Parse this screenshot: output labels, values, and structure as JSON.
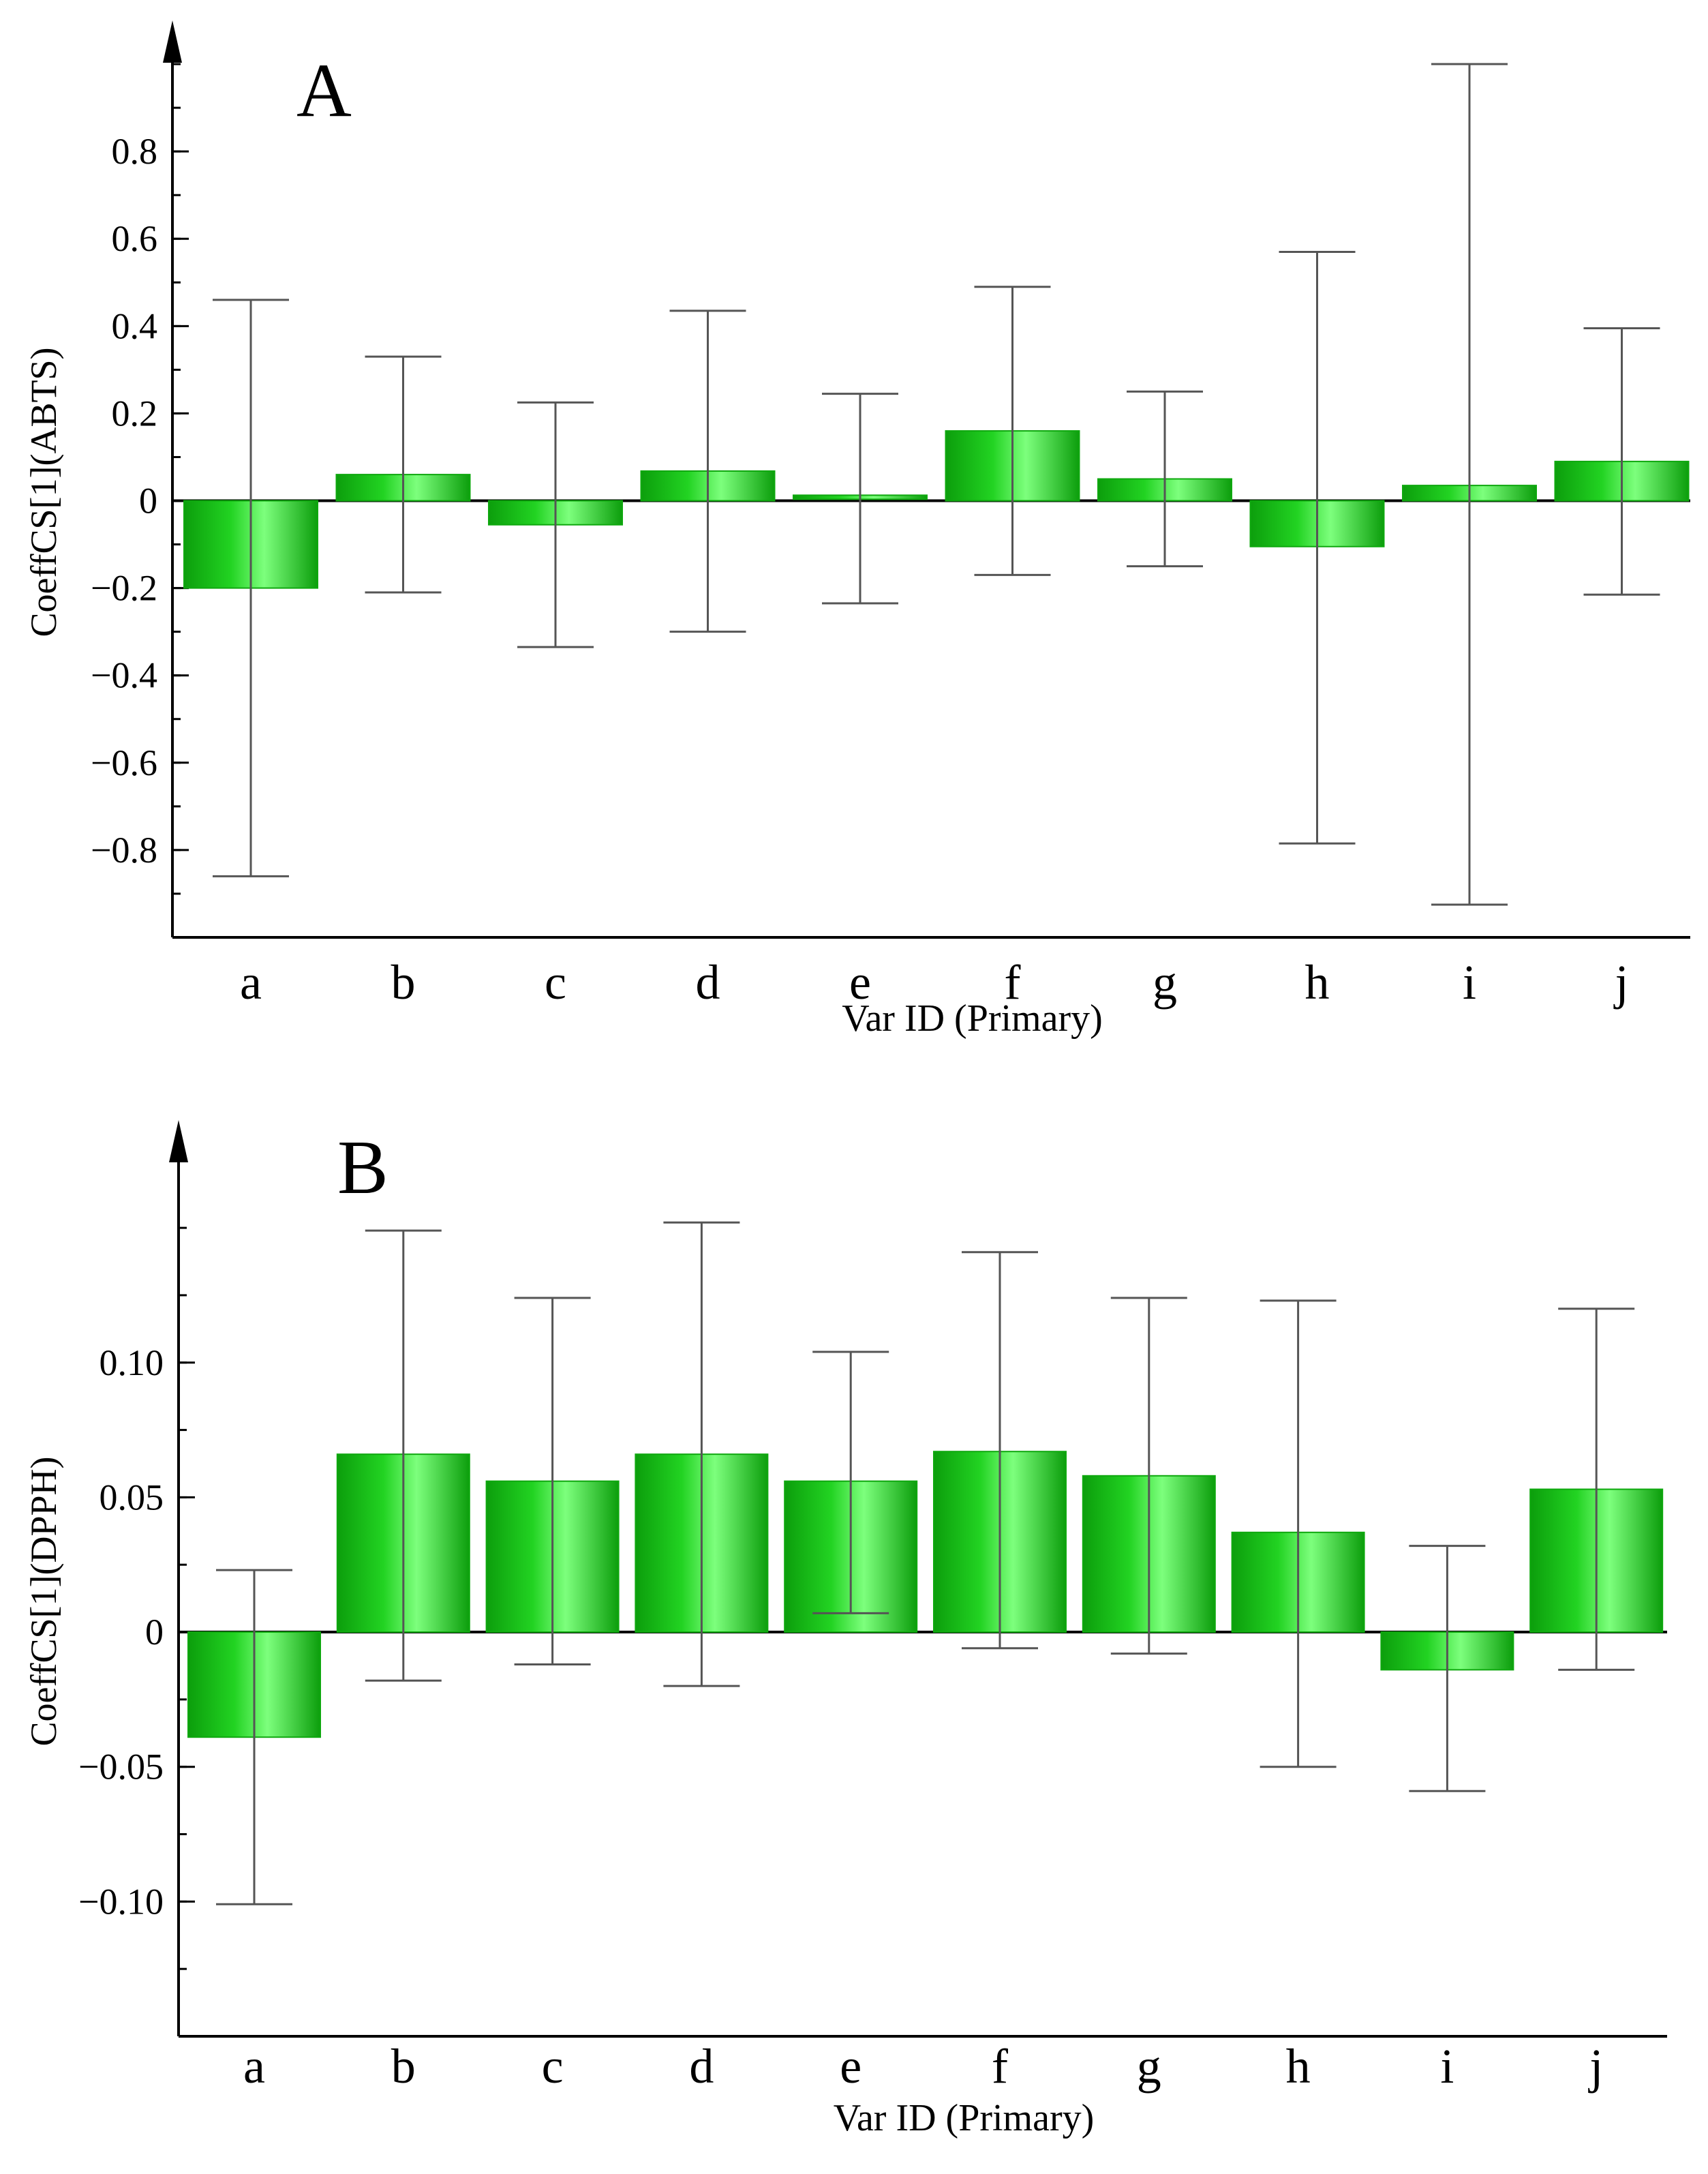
{
  "colors": {
    "bar_light": "#7dff7d",
    "bar_mid": "#22d322",
    "bar_dark": "#0c9e0c",
    "errorbar": "#555555",
    "axis": "#000000"
  },
  "chart_data": [
    {
      "type": "bar",
      "panel_label": "A",
      "title": "",
      "xlabel": "Var ID (Primary)",
      "ylabel": "CoeffCS[1](ABTS)",
      "categories": [
        "a",
        "b",
        "c",
        "d",
        "e",
        "f",
        "g",
        "h",
        "i",
        "j"
      ],
      "values": [
        -0.2,
        0.06,
        -0.055,
        0.068,
        0.008,
        0.16,
        0.05,
        -0.105,
        0.035,
        0.09
      ],
      "error_low": [
        -0.86,
        -0.21,
        -0.335,
        -0.3,
        -0.235,
        -0.17,
        -0.15,
        -0.785,
        -0.925,
        -0.215
      ],
      "error_high": [
        0.46,
        0.33,
        0.225,
        0.435,
        0.245,
        0.49,
        0.25,
        0.57,
        1.0,
        0.395
      ],
      "ylim": [
        -1.0,
        1.1
      ],
      "yticks": [
        -0.8,
        -0.6,
        -0.4,
        -0.2,
        0,
        0.2,
        0.4,
        0.6,
        0.8
      ],
      "ytick_labels": [
        "−0.8",
        "−0.6",
        "−0.4",
        "−0.2",
        "0",
        "0.2",
        "0.4",
        "0.6",
        "0.8"
      ],
      "minor_ytick_step": 0.1
    },
    {
      "type": "bar",
      "panel_label": "B",
      "title": "",
      "xlabel": "Var ID (Primary)",
      "ylabel": "CoeffCS[1](DPPH)",
      "categories": [
        "a",
        "b",
        "c",
        "d",
        "e",
        "f",
        "g",
        "h",
        "i",
        "j"
      ],
      "values": [
        -0.039,
        0.066,
        0.056,
        0.066,
        0.056,
        0.067,
        0.058,
        0.037,
        -0.014,
        0.053
      ],
      "error_low": [
        -0.101,
        -0.018,
        -0.012,
        -0.02,
        0.007,
        -0.006,
        -0.008,
        -0.05,
        -0.059,
        -0.014
      ],
      "error_high": [
        0.023,
        0.149,
        0.124,
        0.152,
        0.104,
        0.141,
        0.124,
        0.123,
        0.032,
        0.12
      ],
      "ylim": [
        -0.15,
        0.19
      ],
      "yticks": [
        -0.1,
        -0.05,
        0,
        0.05,
        0.1
      ],
      "ytick_labels": [
        "−0.10",
        "−0.05",
        "0",
        "0.05",
        "0.10"
      ],
      "minor_ytick_step": 0.025
    }
  ]
}
